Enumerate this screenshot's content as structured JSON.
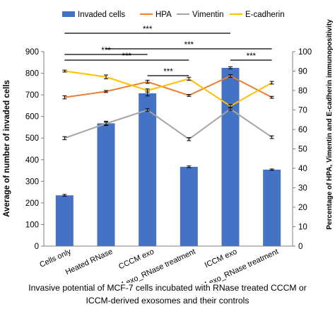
{
  "chart_data": {
    "type": "bar",
    "categories": [
      "Cells only",
      "Heated RNase",
      "CCCM exo",
      "CCCM exo_RNase treatment",
      "ICCM exo",
      "ICCM exo_RNase treatment"
    ],
    "series": [
      {
        "name": "Invaded cells",
        "kind": "bar",
        "axis": "left",
        "color": "#4472C4",
        "values": [
          235,
          568,
          707,
          367,
          825,
          354
        ],
        "errors": [
          4,
          10,
          12,
          4,
          5,
          3
        ]
      },
      {
        "name": "HPA",
        "kind": "line",
        "axis": "right",
        "color": "#ED7D31",
        "values": [
          76.5,
          79.5,
          84.5,
          77.5,
          87.5,
          76.5
        ],
        "errors": [
          0.8,
          0.5,
          0.8,
          0.5,
          0.7,
          0.5
        ]
      },
      {
        "name": "Vimentin",
        "kind": "line",
        "axis": "right",
        "color": "#A5A5A5",
        "values": [
          55.5,
          63,
          70,
          55,
          70.5,
          56
        ],
        "errors": [
          0.8,
          0.7,
          0.6,
          0.8,
          0.6,
          0.7
        ]
      },
      {
        "name": "E-cadherin",
        "kind": "line",
        "axis": "right",
        "color": "#FFC000",
        "values": [
          90,
          87,
          80,
          86,
          72,
          84
        ],
        "errors": [
          0.5,
          1.0,
          0.8,
          0.8,
          0.8,
          0.7
        ]
      }
    ],
    "ylabel": "Average of  number of invaded cells",
    "y2label": "Percentage of HPA, Vimentin and E-cadherin immunopositivity",
    "ylim": [
      0,
      900
    ],
    "yticks": [
      "0",
      "100",
      "200",
      "300",
      "400",
      "500",
      "600",
      "700",
      "800",
      "900"
    ],
    "y2lim": [
      0,
      100
    ],
    "y2ticks": [
      "0",
      "10",
      "20",
      "30",
      "40",
      "50",
      "60",
      "70",
      "80",
      "90",
      "100"
    ],
    "legend_position": "top",
    "grid": false,
    "significance": [
      {
        "from": 0,
        "to": 4,
        "label": "***",
        "level": 4
      },
      {
        "from": 1,
        "to": 5,
        "label": "***",
        "level": 3
      },
      {
        "from": 0,
        "to": 2,
        "label": "***",
        "level": 2
      },
      {
        "from": 0,
        "to": 3,
        "label": "***",
        "level": 1
      },
      {
        "from": 2,
        "to": 3,
        "label": "***",
        "level": 0
      },
      {
        "from": 4,
        "to": 5,
        "label": "***",
        "level": 1
      }
    ]
  },
  "caption": {
    "line1": "Invasive potential of MCF-7 cells incubated with RNase treated CCCM or",
    "line2": "ICCM-derived exosomes and their controls"
  }
}
